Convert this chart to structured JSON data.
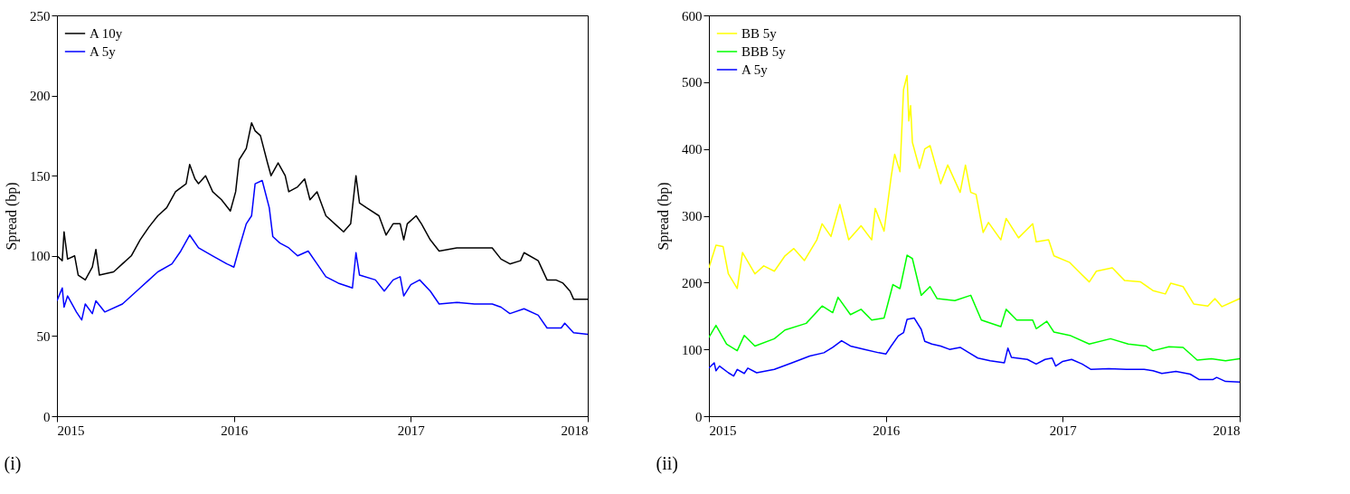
{
  "chart_data": [
    {
      "type": "line",
      "ylabel": "Spread (bp)",
      "xlim": [
        2015,
        2018
      ],
      "xticks": [
        2015,
        2016,
        2017,
        2018
      ],
      "ylim": [
        0,
        250
      ],
      "yticks": [
        0,
        50,
        100,
        150,
        200,
        250
      ],
      "legend": "top left",
      "grid": false,
      "annotations": [
        "(i)"
      ],
      "series": [
        {
          "name": "A 10y",
          "color": "#000000",
          "x": [
            2015.0,
            2015.03,
            2015.04,
            2015.06,
            2015.1,
            2015.12,
            2015.16,
            2015.2,
            2015.22,
            2015.24,
            2015.32,
            2015.37,
            2015.42,
            2015.47,
            2015.52,
            2015.57,
            2015.62,
            2015.67,
            2015.73,
            2015.75,
            2015.78,
            2015.8,
            2015.84,
            2015.88,
            2015.93,
            2015.98,
            2016.01,
            2016.03,
            2016.07,
            2016.1,
            2016.12,
            2016.15,
            2016.19,
            2016.21,
            2016.25,
            2016.29,
            2016.31,
            2016.36,
            2016.4,
            2016.43,
            2016.47,
            2016.52,
            2016.57,
            2016.62,
            2016.66,
            2016.69,
            2016.71,
            2016.75,
            2016.82,
            2016.86,
            2016.9,
            2016.94,
            2016.96,
            2016.98,
            2017.03,
            2017.06,
            2017.11,
            2017.16,
            2017.26,
            2017.36,
            2017.46,
            2017.51,
            2017.56,
            2017.62,
            2017.64,
            2017.72,
            2017.77,
            2017.82,
            2017.86,
            2017.9,
            2017.92,
            2018.0
          ],
          "values": [
            100,
            97,
            115,
            98,
            100,
            88,
            85,
            93,
            104,
            88,
            90,
            95,
            100,
            110,
            118,
            125,
            130,
            140,
            145,
            157,
            148,
            145,
            150,
            140,
            135,
            128,
            140,
            160,
            167,
            183,
            178,
            175,
            158,
            150,
            158,
            150,
            140,
            143,
            148,
            135,
            140,
            125,
            120,
            115,
            120,
            150,
            133,
            130,
            125,
            113,
            120,
            120,
            110,
            120,
            125,
            120,
            110,
            103,
            105,
            105,
            105,
            98,
            95,
            97,
            102,
            97,
            85,
            85,
            83,
            78,
            73,
            73
          ]
        },
        {
          "name": "A 5y",
          "color": "#0000ff",
          "x": [
            2015.0,
            2015.03,
            2015.04,
            2015.06,
            2015.11,
            2015.14,
            2015.16,
            2015.2,
            2015.22,
            2015.27,
            2015.37,
            2015.47,
            2015.52,
            2015.57,
            2015.65,
            2015.7,
            2015.75,
            2015.8,
            2015.88,
            2015.96,
            2016.0,
            2016.03,
            2016.07,
            2016.1,
            2016.12,
            2016.16,
            2016.2,
            2016.22,
            2016.26,
            2016.31,
            2016.36,
            2016.42,
            2016.47,
            2016.52,
            2016.59,
            2016.67,
            2016.69,
            2016.71,
            2016.8,
            2016.85,
            2016.9,
            2016.94,
            2016.96,
            2017.0,
            2017.05,
            2017.11,
            2017.16,
            2017.26,
            2017.36,
            2017.46,
            2017.51,
            2017.56,
            2017.64,
            2017.72,
            2017.77,
            2017.85,
            2017.87,
            2017.92,
            2018.0
          ],
          "values": [
            72,
            80,
            68,
            75,
            65,
            60,
            70,
            64,
            72,
            65,
            70,
            80,
            85,
            90,
            95,
            103,
            113,
            105,
            100,
            95,
            93,
            105,
            120,
            125,
            145,
            147,
            130,
            112,
            108,
            105,
            100,
            103,
            95,
            87,
            83,
            80,
            102,
            88,
            85,
            78,
            85,
            87,
            75,
            82,
            85,
            78,
            70,
            71,
            70,
            70,
            68,
            64,
            67,
            63,
            55,
            55,
            58,
            52,
            51
          ]
        }
      ]
    },
    {
      "type": "line",
      "ylabel": "Spread (bp)",
      "xlim": [
        2015,
        2018
      ],
      "xticks": [
        2015,
        2016,
        2017,
        2018
      ],
      "ylim": [
        0,
        600
      ],
      "yticks": [
        0,
        100,
        200,
        300,
        400,
        500,
        600
      ],
      "legend": "top left",
      "grid": false,
      "annotations": [
        "(ii)"
      ],
      "series": [
        {
          "name": "BB 5y",
          "color": "#ffff00",
          "x": [
            2015.0,
            2015.04,
            2015.08,
            2015.11,
            2015.16,
            2015.19,
            2015.26,
            2015.31,
            2015.37,
            2015.43,
            2015.48,
            2015.54,
            2015.61,
            2015.64,
            2015.69,
            2015.74,
            2015.79,
            2015.86,
            2015.92,
            2015.94,
            2015.99,
            2016.03,
            2016.05,
            2016.08,
            2016.1,
            2016.12,
            2016.13,
            2016.14,
            2016.15,
            2016.19,
            2016.22,
            2016.25,
            2016.31,
            2016.35,
            2016.42,
            2016.45,
            2016.48,
            2016.51,
            2016.55,
            2016.58,
            2016.65,
            2016.68,
            2016.75,
            2016.83,
            2016.85,
            2016.92,
            2016.95,
            2017.04,
            2017.1,
            2017.15,
            2017.19,
            2017.28,
            2017.35,
            2017.44,
            2017.51,
            2017.58,
            2017.61,
            2017.68,
            2017.74,
            2017.82,
            2017.86,
            2017.9,
            2018.0
          ],
          "values": [
            222,
            256,
            254,
            213,
            191,
            245,
            213,
            225,
            217,
            240,
            251,
            233,
            264,
            288,
            269,
            317,
            264,
            285,
            264,
            311,
            277,
            358,
            392,
            366,
            489,
            510,
            442,
            465,
            410,
            371,
            400,
            405,
            348,
            376,
            335,
            376,
            335,
            332,
            275,
            290,
            264,
            296,
            267,
            288,
            261,
            264,
            240,
            230,
            214,
            201,
            217,
            222,
            203,
            201,
            188,
            183,
            199,
            194,
            168,
            165,
            176,
            164,
            176
          ]
        },
        {
          "name": "BBB 5y",
          "color": "#00ff00",
          "x": [
            2015.0,
            2015.04,
            2015.1,
            2015.16,
            2015.2,
            2015.26,
            2015.37,
            2015.43,
            2015.55,
            2015.64,
            2015.7,
            2015.73,
            2015.8,
            2015.86,
            2015.92,
            2015.99,
            2016.04,
            2016.08,
            2016.12,
            2016.15,
            2016.2,
            2016.25,
            2016.29,
            2016.39,
            2016.48,
            2016.54,
            2016.65,
            2016.68,
            2016.74,
            2016.83,
            2016.85,
            2016.91,
            2016.95,
            2017.04,
            2017.15,
            2017.27,
            2017.37,
            2017.47,
            2017.51,
            2017.6,
            2017.68,
            2017.76,
            2017.84,
            2017.92,
            2018.0
          ],
          "values": [
            118,
            136,
            108,
            98,
            121,
            105,
            116,
            129,
            139,
            165,
            155,
            178,
            152,
            160,
            144,
            147,
            197,
            191,
            241,
            236,
            181,
            194,
            176,
            173,
            181,
            144,
            134,
            160,
            144,
            144,
            131,
            142,
            126,
            121,
            108,
            116,
            108,
            105,
            98,
            104,
            103,
            84,
            86,
            83,
            86
          ]
        },
        {
          "name": "A 5y",
          "color": "#0000ff",
          "x": [
            2015.0,
            2015.03,
            2015.04,
            2015.06,
            2015.11,
            2015.14,
            2015.16,
            2015.2,
            2015.22,
            2015.27,
            2015.37,
            2015.47,
            2015.52,
            2015.57,
            2015.65,
            2015.7,
            2015.75,
            2015.8,
            2015.88,
            2015.96,
            2016.0,
            2016.03,
            2016.07,
            2016.1,
            2016.12,
            2016.16,
            2016.2,
            2016.22,
            2016.26,
            2016.31,
            2016.36,
            2016.42,
            2016.47,
            2016.52,
            2016.59,
            2016.67,
            2016.69,
            2016.71,
            2016.8,
            2016.85,
            2016.9,
            2016.94,
            2016.96,
            2017.0,
            2017.05,
            2017.11,
            2017.16,
            2017.26,
            2017.36,
            2017.46,
            2017.51,
            2017.56,
            2017.64,
            2017.72,
            2017.77,
            2017.85,
            2017.87,
            2017.92,
            2018.0
          ],
          "values": [
            72,
            80,
            68,
            75,
            65,
            60,
            70,
            64,
            72,
            65,
            70,
            80,
            85,
            90,
            95,
            103,
            113,
            105,
            100,
            95,
            93,
            105,
            120,
            125,
            145,
            147,
            130,
            112,
            108,
            105,
            100,
            103,
            95,
            87,
            83,
            80,
            102,
            88,
            85,
            78,
            85,
            87,
            75,
            82,
            85,
            78,
            70,
            71,
            70,
            70,
            68,
            64,
            67,
            63,
            55,
            55,
            58,
            52,
            51
          ]
        }
      ]
    }
  ]
}
